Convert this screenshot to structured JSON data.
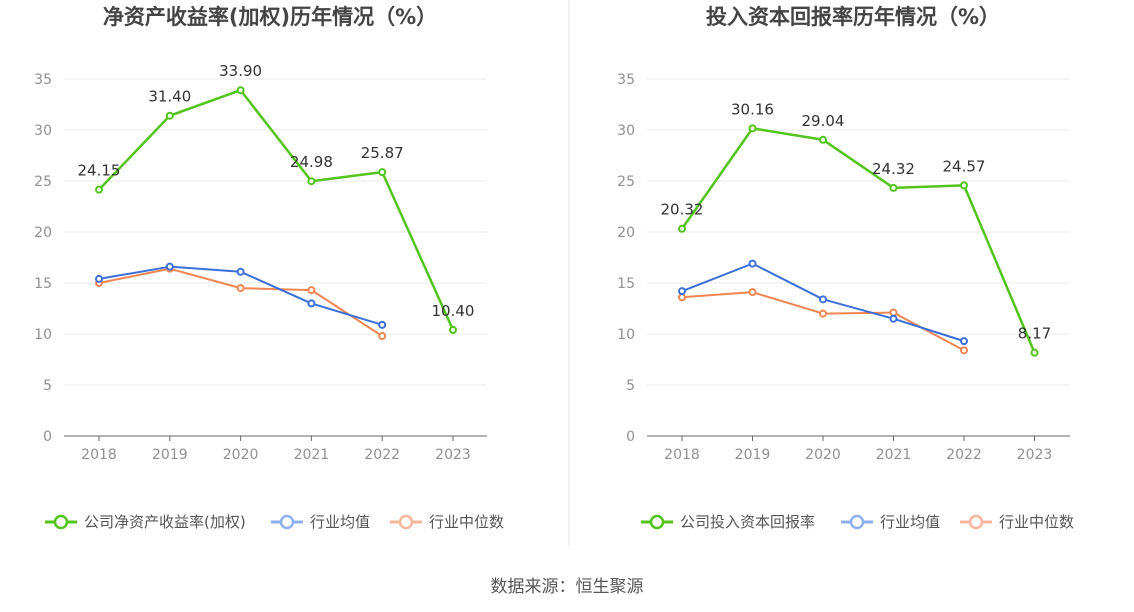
{
  "chart_data": [
    {
      "type": "line",
      "title": "净资产收益率(加权)历年情况（%）",
      "categories": [
        "2018",
        "2019",
        "2020",
        "2021",
        "2022",
        "2023"
      ],
      "ylim": [
        0,
        35
      ],
      "yticks": [
        "0",
        "5",
        "10",
        "15",
        "20",
        "25",
        "30",
        "35"
      ],
      "series": [
        {
          "name": "公司净资产收益率(加权)",
          "color": "#52c41a",
          "values": [
            24.15,
            31.4,
            33.9,
            24.98,
            25.87,
            10.4
          ],
          "labels": [
            "24.15",
            "31.40",
            "33.90",
            "24.98",
            "25.87",
            "10.40"
          ]
        },
        {
          "name": "行业均值",
          "color": "#3a6fd8",
          "values": [
            15.4,
            16.6,
            16.1,
            13.0,
            10.9,
            null
          ]
        },
        {
          "name": "行业中位数",
          "color": "#f08552",
          "values": [
            15.0,
            16.4,
            14.5,
            14.3,
            9.8,
            null
          ]
        }
      ],
      "legend_position": "bottom"
    },
    {
      "type": "line",
      "title": "投入资本回报率历年情况（%）",
      "categories": [
        "2018",
        "2019",
        "2020",
        "2021",
        "2022",
        "2023"
      ],
      "ylim": [
        0,
        35
      ],
      "yticks": [
        "0",
        "5",
        "10",
        "15",
        "20",
        "25",
        "30",
        "35"
      ],
      "series": [
        {
          "name": "公司投入资本回报率",
          "color": "#52c41a",
          "values": [
            20.32,
            30.16,
            29.04,
            24.32,
            24.57,
            8.17
          ],
          "labels": [
            "20.32",
            "30.16",
            "29.04",
            "24.32",
            "24.57",
            "8.17"
          ]
        },
        {
          "name": "行业均值",
          "color": "#3a6fd8",
          "values": [
            14.2,
            16.9,
            13.4,
            11.5,
            9.3,
            null
          ]
        },
        {
          "name": "行业中位数",
          "color": "#f08552",
          "values": [
            13.6,
            14.1,
            12.0,
            12.1,
            8.4,
            null
          ]
        }
      ],
      "legend_position": "bottom"
    }
  ],
  "legend_colors": {
    "company": "#52c41a",
    "avg": "#8fb0ee",
    "median": "#f7b59a"
  },
  "source": "数据来源：恒生聚源"
}
